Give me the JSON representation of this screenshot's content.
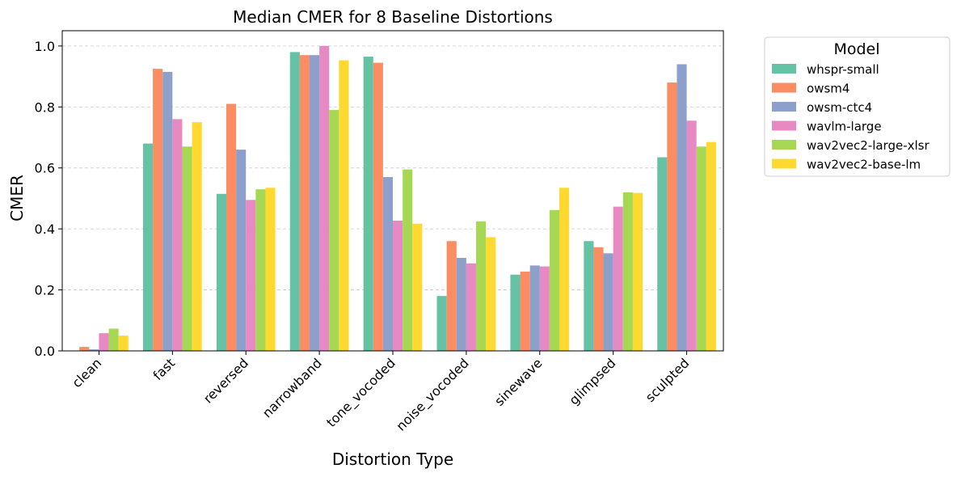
{
  "chart_data": {
    "type": "bar",
    "title": "Median CMER for 8 Baseline Distortions",
    "xlabel": "Distortion Type",
    "ylabel": "CMER",
    "ylim": [
      0,
      1.05
    ],
    "yticks": [
      "0.0",
      "0.2",
      "0.4",
      "0.6",
      "0.8",
      "1.0"
    ],
    "grid": "horizontal-dashed",
    "legend_title": "Model",
    "legend_placement": "outside-top-right",
    "categories": [
      "clean",
      "fast",
      "reversed",
      "narrowband",
      "tone_vocoded",
      "noise_vocoded",
      "sinewave",
      "glimpsed",
      "sculpted"
    ],
    "series": [
      {
        "name": "whspr-small",
        "color": "#66c2a5",
        "values": [
          0.0,
          0.68,
          0.515,
          0.98,
          0.965,
          0.18,
          0.25,
          0.36,
          0.635
        ]
      },
      {
        "name": "owsm4",
        "color": "#fc8d62",
        "values": [
          0.013,
          0.925,
          0.81,
          0.97,
          0.945,
          0.36,
          0.26,
          0.34,
          0.88
        ]
      },
      {
        "name": "owsm-ctc4",
        "color": "#8da0cb",
        "values": [
          0.005,
          0.915,
          0.66,
          0.97,
          0.57,
          0.305,
          0.28,
          0.32,
          0.94
        ]
      },
      {
        "name": "wavlm-large",
        "color": "#e78ac3",
        "values": [
          0.058,
          0.76,
          0.495,
          1.0,
          0.427,
          0.287,
          0.277,
          0.473,
          0.755
        ]
      },
      {
        "name": "wav2vec2-large-xlsr",
        "color": "#a6d854",
        "values": [
          0.073,
          0.67,
          0.53,
          0.79,
          0.595,
          0.425,
          0.462,
          0.52,
          0.67
        ]
      },
      {
        "name": "wav2vec2-base-lm",
        "color": "#ffd92f",
        "values": [
          0.05,
          0.75,
          0.535,
          0.953,
          0.417,
          0.373,
          0.535,
          0.518,
          0.685
        ]
      }
    ]
  }
}
